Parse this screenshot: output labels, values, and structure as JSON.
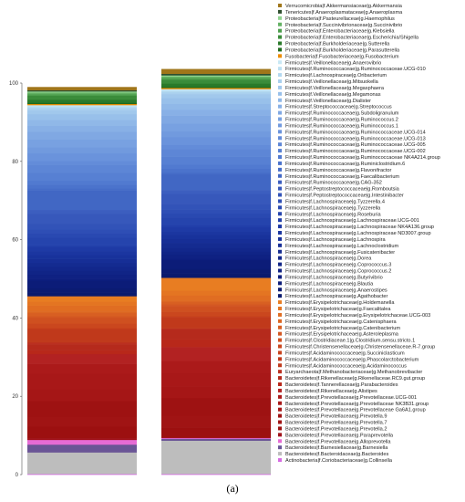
{
  "caption": "(a)",
  "chart_data": {
    "type": "bar",
    "stacked": true,
    "categories": [
      "",
      ""
    ],
    "ylim": [
      0,
      100
    ],
    "yticks": [
      0,
      20,
      40,
      60,
      80,
      100
    ],
    "grid": false,
    "legend_position": "right",
    "series": [
      {
        "name": "Actinobacteria|f.Coriobacteriaceae|g.Collinsella",
        "color": "#d66be3",
        "values": [
          0.2,
          0.2
        ]
      },
      {
        "name": "Bacteroidetes|f.Bacteroidaceae|g.Bacteroides",
        "color": "#bdbdbd",
        "values": [
          5.5,
          8.5
        ]
      },
      {
        "name": "Bacteroidetes|f.Barnesiellaceae|g.Barnesiella",
        "color": "#6a5596",
        "values": [
          2.0,
          0.5
        ]
      },
      {
        "name": "Bacteroidetes|f.Prevotellaceae|g.Alloprevotella",
        "color": "#e66bd5",
        "values": [
          1.2,
          0.2
        ]
      },
      {
        "name": "Bacteroidetes|f.Prevotellaceae|g.Paraprevotella",
        "color": "#a0121a",
        "values": [
          0.4,
          0.2
        ]
      },
      {
        "name": "Bacteroidetes|f.Prevotellaceae|g.Prevotella.2",
        "color": "#9c1010",
        "values": [
          3.0,
          2.5
        ]
      },
      {
        "name": "Bacteroidetes|f.Prevotellaceae|g.Prevotella.7",
        "color": "#a01414",
        "values": [
          2.5,
          3.0
        ]
      },
      {
        "name": "Bacteroidetes|f.Prevotellaceae|g.Prevotella.9",
        "color": "#9e1212",
        "values": [
          4.0,
          4.5
        ]
      },
      {
        "name": "Bacteroidetes|f.Prevotellaceae|g.Prevotellaceae Ga6A1.group",
        "color": "#a51616",
        "values": [
          3.0,
          3.0
        ]
      },
      {
        "name": "Bacteroidetes|f.Prevotellaceae|g.Prevotellaceae NK3B31.group",
        "color": "#a81818",
        "values": [
          4.0,
          3.5
        ]
      },
      {
        "name": "Bacteroidetes|f.Prevotellaceae|g.Prevotellaceae.UCG-001",
        "color": "#ab1a1a",
        "values": [
          2.5,
          3.0
        ]
      },
      {
        "name": "Bacteroidetes|f.Rikenellaceae|g.Alistipes",
        "color": "#b22222",
        "values": [
          2.5,
          3.5
        ]
      },
      {
        "name": "Bacteroidetes|f.Tannerellaceae|g.Parabacteroides",
        "color": "#b8281a",
        "values": [
          1.0,
          2.0
        ]
      },
      {
        "name": "Bacteroidetes|f.Rikenellaceae|g.Rikenellaceae.RC9.gut.group",
        "color": "#b52a1c",
        "values": [
          1.5,
          2.5
        ]
      },
      {
        "name": "Euryarchaeota|f.Methanobacteriaceae|g.Methanobrevibacter",
        "color": "#bb3020",
        "values": [
          0.5,
          0.3
        ]
      },
      {
        "name": "Firmicutes|f.Acidaminococcaceae|g.Acidaminococcus",
        "color": "#c03a1c",
        "values": [
          0.5,
          0.4
        ]
      },
      {
        "name": "Firmicutes|f.Acidaminococcaceae|g.Phascolarctobacterium",
        "color": "#c0391b",
        "values": [
          3.0,
          2.5
        ]
      },
      {
        "name": "Firmicutes|f.Acidaminococcaceae|g.Succiniclasticum",
        "color": "#c8431d",
        "values": [
          0.3,
          0.3
        ]
      },
      {
        "name": "Firmicutes|f.Christensenellaceae|g.Christensenellaceae.R-7.group",
        "color": "#ca471e",
        "values": [
          1.0,
          1.0
        ]
      },
      {
        "name": "Firmicutes|f.Clostridiaceae.1|g.Clostridium.sensu.stricto.1",
        "color": "#cf5020",
        "values": [
          1.5,
          1.5
        ]
      },
      {
        "name": "Firmicutes|f.Erysipelotrichaceae|g.Asteroleplasma",
        "color": "#d35722",
        "values": [
          0.4,
          0.4
        ]
      },
      {
        "name": "Firmicutes|f.Erysipelotrichaceae|g.Catenibacterium",
        "color": "#d85f22",
        "values": [
          0.8,
          0.6
        ]
      },
      {
        "name": "Firmicutes|f.Erysipelotrichaceae|g.Catenisphaera",
        "color": "#dc6622",
        "values": [
          0.4,
          0.4
        ]
      },
      {
        "name": "Firmicutes|f.Erysipelotrichaceae|g.Erysipelotrichaceae.UCG-003",
        "color": "#e06d22",
        "values": [
          1.5,
          1.3
        ]
      },
      {
        "name": "Firmicutes|f.Erysipelotrichaceae|g.Faecalitalea",
        "color": "#e47522",
        "values": [
          1.0,
          1.2
        ]
      },
      {
        "name": "Firmicutes|f.Erysipelotrichaceae|g.Holdemanella",
        "color": "#e87d22",
        "values": [
          1.4,
          3.3
        ]
      },
      {
        "name": "Firmicutes|f.Lachnospiraceae|g.Agathobacter",
        "color": "#0a1a6e",
        "values": [
          1.0,
          1.2
        ]
      },
      {
        "name": "Firmicutes|f.Lachnospiraceae|g.Anaerostipes",
        "color": "#0b1b72",
        "values": [
          1.0,
          1.1
        ]
      },
      {
        "name": "Firmicutes|f.Lachnospiraceae|g.Blautia",
        "color": "#0c1c78",
        "values": [
          2.0,
          2.2
        ]
      },
      {
        "name": "Firmicutes|f.Lachnospiraceae|g.Butyrivibrio",
        "color": "#0d1e7e",
        "values": [
          0.5,
          0.4
        ]
      },
      {
        "name": "Firmicutes|f.Lachnospiraceae|g.Coprococcus.2",
        "color": "#0f2182",
        "values": [
          1.0,
          1.0
        ]
      },
      {
        "name": "Firmicutes|f.Lachnospiraceae|g.Coprococcus.3",
        "color": "#102486",
        "values": [
          1.0,
          0.8
        ]
      },
      {
        "name": "Firmicutes|f.Lachnospiraceae|g.Dorea",
        "color": "#12278b",
        "values": [
          1.0,
          1.0
        ]
      },
      {
        "name": "Firmicutes|f.Lachnospiraceae|g.Fusicatenibacter",
        "color": "#142b90",
        "values": [
          1.0,
          1.2
        ]
      },
      {
        "name": "Firmicutes|f.Lachnospiraceae|g.Lachnoclostridium",
        "color": "#162e96",
        "values": [
          1.0,
          1.0
        ]
      },
      {
        "name": "Firmicutes|f.Lachnospiraceae|g.Lachnospira",
        "color": "#18329b",
        "values": [
          1.0,
          1.0
        ]
      },
      {
        "name": "Firmicutes|f.Lachnospiraceae|g.Lachnospiraceae ND3007.group",
        "color": "#1b36a0",
        "values": [
          1.0,
          1.0
        ]
      },
      {
        "name": "Firmicutes|f.Lachnospiraceae|g.Lachnospiraceae NK4A136.group",
        "color": "#1e3aa5",
        "values": [
          1.0,
          1.0
        ]
      },
      {
        "name": "Firmicutes|f.Lachnospiraceae|g.Lachnospiraceae.UCG-001",
        "color": "#213fa9",
        "values": [
          0.5,
          0.5
        ]
      },
      {
        "name": "Firmicutes|f.Lachnospiraceae|g.Roseburia",
        "color": "#2544ad",
        "values": [
          2.0,
          2.0
        ]
      },
      {
        "name": "Firmicutes|f.Lachnospiraceae|g.Tyzzerella",
        "color": "#2949b1",
        "values": [
          1.0,
          1.0
        ]
      },
      {
        "name": "Firmicutes|f.Lachnospiraceae|g.Tyzzerella.4",
        "color": "#2e4eb5",
        "values": [
          1.0,
          1.0
        ]
      },
      {
        "name": "Firmicutes|f.Peptostreptococcaceae|g.Intestinibacter",
        "color": "#3253b8",
        "values": [
          1.5,
          1.5
        ]
      },
      {
        "name": "Firmicutes|f.Peptostreptococcaceae|g.Romboutsia",
        "color": "#3758bb",
        "values": [
          2.5,
          2.5
        ]
      },
      {
        "name": "Firmicutes|f.Ruminococcaceae|g.CAG-352",
        "color": "#3c5ebf",
        "values": [
          1.0,
          1.0
        ]
      },
      {
        "name": "Firmicutes|f.Ruminococcaceae|g.Faecalibacterium",
        "color": "#4167c4",
        "values": [
          5.0,
          4.0
        ]
      },
      {
        "name": "Firmicutes|f.Ruminococcaceae|g.Flavonifractor",
        "color": "#466dc8",
        "values": [
          0.5,
          0.5
        ]
      },
      {
        "name": "Firmicutes|f.Ruminococcaceae|g.Ruminiclostridium.6",
        "color": "#4b73cc",
        "values": [
          1.0,
          1.0
        ]
      },
      {
        "name": "Firmicutes|f.Ruminococcaceae|g.Ruminococcaceae NK4A214.group",
        "color": "#517ad0",
        "values": [
          1.0,
          1.0
        ]
      },
      {
        "name": "Firmicutes|f.Ruminococcaceae|g.Ruminococcaceae.UCG-002",
        "color": "#5780d3",
        "values": [
          2.0,
          2.0
        ]
      },
      {
        "name": "Firmicutes|f.Ruminococcaceae|g.Ruminococcaceae.UCG-005",
        "color": "#5d86d6",
        "values": [
          2.0,
          2.0
        ]
      },
      {
        "name": "Firmicutes|f.Ruminococcaceae|g.Ruminococcaceae.UCG-013",
        "color": "#638cd9",
        "values": [
          1.0,
          1.0
        ]
      },
      {
        "name": "Firmicutes|f.Ruminococcaceae|g.Ruminococcaceae.UCG-014",
        "color": "#6a93dc",
        "values": [
          2.0,
          2.0
        ]
      },
      {
        "name": "Firmicutes|f.Ruminococcaceae|g.Ruminococcus.1",
        "color": "#719ade",
        "values": [
          1.5,
          1.5
        ]
      },
      {
        "name": "Firmicutes|f.Ruminococcaceae|g.Ruminococcus.2",
        "color": "#78a1e1",
        "values": [
          2.0,
          2.0
        ]
      },
      {
        "name": "Firmicutes|f.Ruminococcaceae|g.Subdoligranulum",
        "color": "#80a8e3",
        "values": [
          2.0,
          2.0
        ]
      },
      {
        "name": "Firmicutes|f.Streptococcaceae|g.Streptococcus",
        "color": "#88b0e6",
        "values": [
          1.5,
          1.5
        ]
      },
      {
        "name": "Firmicutes|f.Veillonellaceae|g.Dialister",
        "color": "#90b8e8",
        "values": [
          1.5,
          1.5
        ]
      },
      {
        "name": "Firmicutes|f.Veillonellaceae|g.Megamonas",
        "color": "#98c0ea",
        "values": [
          1.5,
          1.5
        ]
      },
      {
        "name": "Firmicutes|f.Veillonellaceae|g.Megasphaera",
        "color": "#a1c8ec",
        "values": [
          1.0,
          1.0
        ]
      },
      {
        "name": "Firmicutes|f.Veillonellaceae|g.Mitsuokella",
        "color": "#aad0ee",
        "values": [
          0.5,
          0.5
        ]
      },
      {
        "name": "Firmicutes|f.Lachnospiraceae|g.Oribacterium",
        "color": "#b3d8f0",
        "values": [
          0.3,
          0.3
        ]
      },
      {
        "name": "Firmicutes|f.Ruminococcaceae|g.Ruminococcaceae.UCG-010",
        "color": "#bde0f2",
        "values": [
          0.3,
          0.3
        ]
      },
      {
        "name": "Firmicutes|f.Veillonellaceae|g.Anaerovibrio",
        "color": "#c8e8f5",
        "values": [
          0.2,
          0.2
        ]
      },
      {
        "name": "Fusobacteria|f.Fusobacteriaceae|g.Fusobacterium",
        "color": "#ec8c00",
        "values": [
          0.3,
          0.3
        ]
      },
      {
        "name": "Proteobacteria|f.Burkholderiaceae|g.Parasutterella",
        "color": "#1f6b1f",
        "values": [
          0.3,
          0.3
        ]
      },
      {
        "name": "Proteobacteria|f.Burkholderiaceae|g.Sutterella",
        "color": "#2a7a2a",
        "values": [
          0.8,
          0.8
        ]
      },
      {
        "name": "Proteobacteria|f.Enterobacteriaceae|g.Escherichia/Shigella",
        "color": "#3a8c3a",
        "values": [
          1.0,
          1.0
        ]
      },
      {
        "name": "Proteobacteria|f.Enterobacteriaceae|g.Klebsiella",
        "color": "#4c9e4c",
        "values": [
          0.4,
          0.4
        ]
      },
      {
        "name": "Proteobacteria|f.Succinivibrionaceae|g.Succinivibrio",
        "color": "#63b163",
        "values": [
          0.4,
          0.4
        ]
      },
      {
        "name": "Proteobacteria|f.Pasteurellaceae|g.Haemophilus",
        "color": "#8fd48f",
        "values": [
          0.3,
          0.3
        ]
      },
      {
        "name": "Tenericutes|f.Anaeroplasmataceae|g.Anaeroplasma",
        "color": "#2f4f2f",
        "values": [
          0.3,
          0.4
        ]
      },
      {
        "name": "Verrucomicrobia|f.Akkermansiaceae|g.Akkermansia",
        "color": "#a0761a",
        "values": [
          0.8,
          1.2
        ]
      }
    ]
  }
}
